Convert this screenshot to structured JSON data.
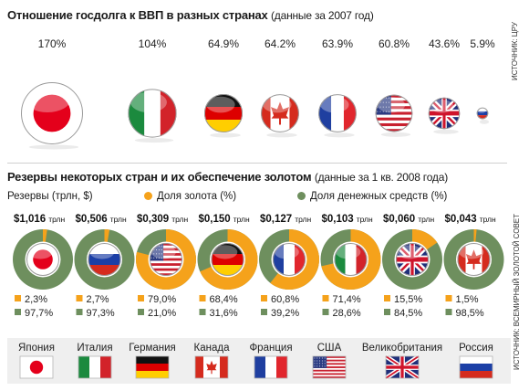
{
  "title1": {
    "main": "Отношение госдолга к ВВП в разных странах",
    "sub": "(данные за 2007 год)"
  },
  "source1": "ИСТОЧНИК: ЦРУ",
  "title2": {
    "main": "Резервы некоторых стран и их обеспечение золотом",
    "sub": "(данные за 1 кв. 2008 года)"
  },
  "source2": "ИСТОЧНИК: ВСЕМИРНЫЙ ЗОЛОТОЙ СОВЕТ",
  "colors": {
    "gold": "#f5a21b",
    "cash": "#6e8f5e",
    "red": "#e32216"
  },
  "chart_data": [
    {
      "type": "bubble",
      "title": "Отношение госдолга к ВВП в разных странах",
      "categories": [
        "Japan",
        "Italy",
        "Germany",
        "Canada",
        "France",
        "USA",
        "UK",
        "Russia"
      ],
      "values": [
        170,
        104,
        64.9,
        64.2,
        63.9,
        60.8,
        43.6,
        5.9
      ],
      "labels": [
        "170%",
        "104%",
        "64.9%",
        "64.2%",
        "63.9%",
        "60.8%",
        "43.6%",
        "5.9%"
      ],
      "flags": [
        "japan",
        "italy",
        "germany",
        "canada",
        "france",
        "usa",
        "uk",
        "russia"
      ]
    },
    {
      "type": "donut",
      "title": "Резервы некоторых стран и их обеспечение золотом",
      "legend": {
        "reserves": "Резервы (трлн, $)",
        "gold": "Доля золота (%)",
        "cash": "Доля денежных средств (%)"
      },
      "flags": [
        "japan",
        "russia",
        "usa",
        "germany",
        "france",
        "italy",
        "uk",
        "canada"
      ],
      "reserves": [
        "$1,016",
        "$0,506",
        "$0,309",
        "$0,150",
        "$0,127",
        "$0,103",
        "$0,060",
        "$0,043"
      ],
      "reserve_unit": "трлн",
      "gold_pct": [
        2.3,
        2.7,
        79.0,
        68.4,
        60.8,
        71.4,
        15.5,
        1.5
      ],
      "gold_labels": [
        "2,3%",
        "2,7%",
        "79,0%",
        "68,4%",
        "60,8%",
        "71,4%",
        "15,5%",
        "1,5%"
      ],
      "cash_labels": [
        "97,7%",
        "97,3%",
        "21,0%",
        "31,6%",
        "39,2%",
        "28,6%",
        "84,5%",
        "98,5%"
      ]
    }
  ],
  "country_legend": [
    {
      "name": "Япония",
      "flag": "japan"
    },
    {
      "name": "Италия",
      "flag": "italy"
    },
    {
      "name": "Германия",
      "flag": "germany"
    },
    {
      "name": "Канада",
      "flag": "canada"
    },
    {
      "name": "Франция",
      "flag": "france"
    },
    {
      "name": "США",
      "flag": "usa"
    },
    {
      "name": "Великобритания",
      "flag": "uk"
    },
    {
      "name": "Россия",
      "flag": "russia"
    }
  ]
}
